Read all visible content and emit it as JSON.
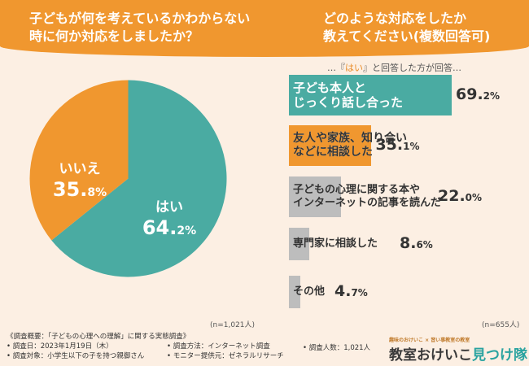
{
  "header": {
    "question_left_line1": "子どもが何を考えているかわからない",
    "question_left_line2": "時に何か対応をしましたか？",
    "question_right_line1": "どのような対応をしたか",
    "question_right_line2": "教えてください(複数回答可)"
  },
  "lead": {
    "prefix": "…『",
    "yes": "はい",
    "suffix": "』と回答した方が回答…"
  },
  "colors": {
    "orange": "#f0972f",
    "teal": "#4aaba2",
    "gray": "#bdbdbd"
  },
  "chart_data": [
    {
      "type": "pie",
      "title": "子どもが何を考えているかわからない時に何か対応をしましたか？",
      "series": [
        {
          "name": "はい",
          "value": 64.2,
          "unit": "%",
          "color": "#4aaba2"
        },
        {
          "name": "いいえ",
          "value": 35.8,
          "unit": "%",
          "color": "#f0972f"
        }
      ],
      "note": "(n=1,021人)"
    },
    {
      "type": "bar",
      "title": "どのような対応をしたか教えてください(複数回答可)",
      "categories": [
        "子ども本人と\nじっくり話し合った",
        "友人や家族、知り合い\nなどに相談した",
        "子どもの心理に関する本や\nインターネットの記事を読んだ",
        "専門家に相談した",
        "その他"
      ],
      "values": [
        69.2,
        35.1,
        22.0,
        8.6,
        4.7
      ],
      "unit": "%",
      "colors": [
        "#4aaba2",
        "#f0972f",
        "#bdbdbd",
        "#bdbdbd",
        "#bdbdbd"
      ],
      "note": "(n=655人)"
    }
  ],
  "footer": {
    "survey_title": "《調査概要：「子どもの心理への理解」に関する実態調査》",
    "date": "• 調査日：2023年1月19日（木）",
    "method": "• 調査方法：インターネット調査",
    "count": "• 調査人数：1,021人",
    "target": "• 調査対象：小学生以下の子を持つ親御さん",
    "provider": "• モニター提供元：ゼネラルリサーチ"
  },
  "logo": {
    "tagline": "趣味のおけいこ × 習い事教室の教室",
    "main": "教室おけいこ",
    "accent": "見つけ隊"
  }
}
